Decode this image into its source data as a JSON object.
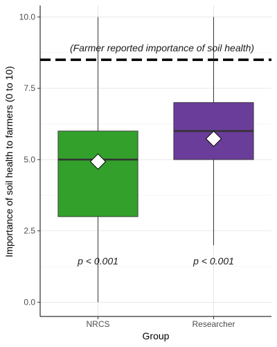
{
  "chart_data": {
    "type": "box",
    "xlabel": "Group",
    "ylabel": "Importance of soil health to farmers (0 to 10)",
    "ylim": [
      -0.5,
      10.4
    ],
    "yticks": [
      0.0,
      2.5,
      5.0,
      7.5,
      10.0
    ],
    "ytick_labels": [
      "0.0",
      "2.5",
      "5.0",
      "7.5",
      "10.0"
    ],
    "grid": true,
    "categories": [
      "NRCS",
      "Researcher"
    ],
    "boxes": [
      {
        "category": "NRCS",
        "min": 0,
        "q1": 3,
        "median": 5,
        "q3": 6,
        "max": 10,
        "mean": 4.93,
        "color": "#33a02c"
      },
      {
        "category": "Researcher",
        "min": 2,
        "q1": 5,
        "median": 6,
        "q3": 7,
        "max": 10,
        "mean": 5.73,
        "color": "#6a3d9a"
      }
    ],
    "reference_line": {
      "value": 8.5,
      "label": "(Farmer reported importance of soil health)"
    },
    "annotations": [
      {
        "category": "NRCS",
        "y": 1.45,
        "text": "p < 0.001"
      },
      {
        "category": "Researcher",
        "y": 1.45,
        "text": "p < 0.001"
      }
    ]
  }
}
